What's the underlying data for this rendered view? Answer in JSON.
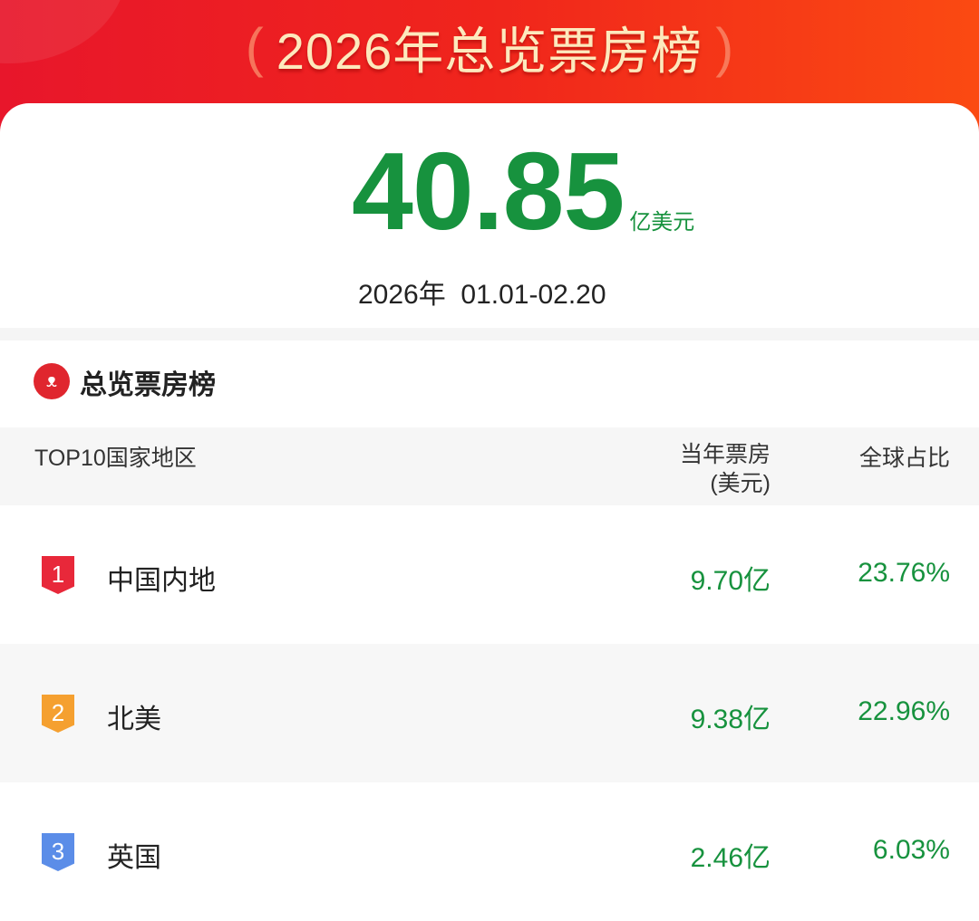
{
  "header": {
    "title": "2026年总览票房榜"
  },
  "summary": {
    "total": "40.85",
    "unit": "亿美元",
    "date": "2026年  01.01-02.20"
  },
  "section": {
    "title": "总览票房榜",
    "logo_icon": "cat-eye-logo-icon"
  },
  "table": {
    "columns": [
      "TOP10国家地区",
      "当年票房",
      "(美元)",
      "全球占比"
    ],
    "rows": [
      {
        "rank": "1",
        "name": "中国内地",
        "box_office": "9.70亿",
        "share": "23.76%",
        "badge_color": "#e8283a"
      },
      {
        "rank": "2",
        "name": "北美",
        "box_office": "9.38亿",
        "share": "22.96%",
        "badge_color": "#f5a030"
      },
      {
        "rank": "3",
        "name": "英国",
        "box_office": "2.46亿",
        "share": "6.03%",
        "badge_color": "#5b8de8"
      }
    ]
  },
  "colors": {
    "accent_green": "#17923e",
    "header_red": "#f0251c"
  }
}
